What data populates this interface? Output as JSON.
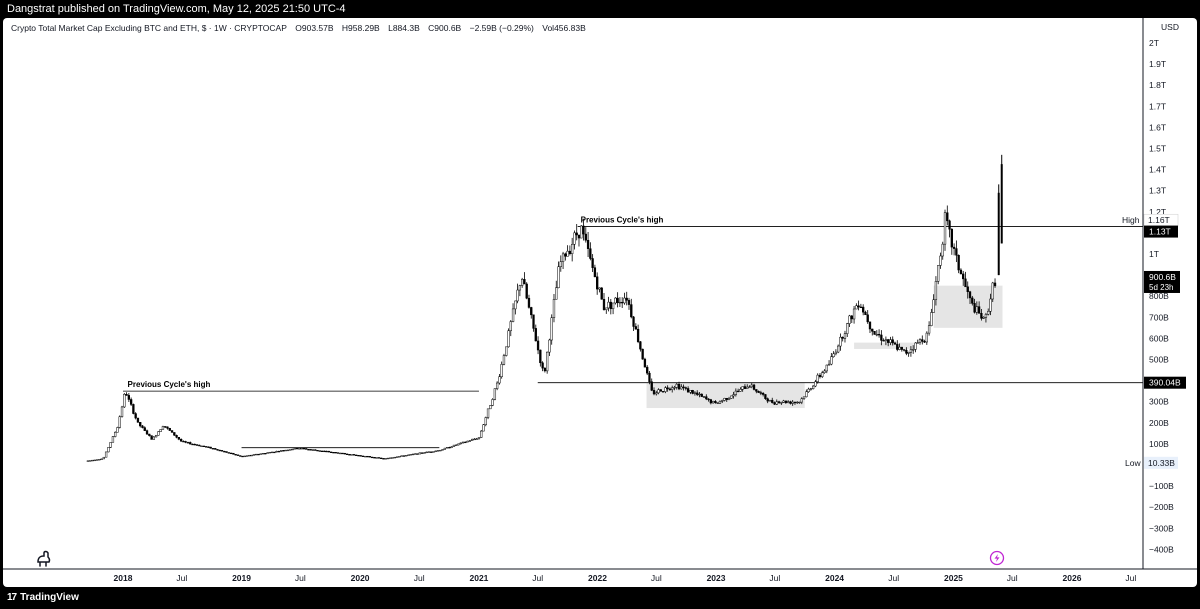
{
  "header": {
    "publisher_line": "Dangstrat published on TradingView.com, May 12, 2025 21:50 UTC-4"
  },
  "legend": {
    "symbol": "Crypto Total Market Cap Excluding BTC and ETH, $ · 1W · CRYPTOCAP",
    "open": "O903.57B",
    "high": "H958.29B",
    "low": "L884.3B",
    "close": "C900.6B",
    "change": "−2.59B (−0.29%)",
    "volume": "Vol456.83B"
  },
  "price_axis": {
    "currency": "USD",
    "tick_labels": [
      "2T",
      "1.9T",
      "1.8T",
      "1.7T",
      "1.6T",
      "1.5T",
      "1.4T",
      "1.3T",
      "1.2T",
      "1.1T",
      "1T",
      "800B",
      "700B",
      "600B",
      "500B",
      "300B",
      "200B",
      "100B",
      "−100B",
      "−200B",
      "−300B",
      "−400B"
    ],
    "high_label": "High",
    "high_value": "1.16T",
    "level_1_13": "1.13T",
    "current_price": "900.6B",
    "countdown": "5d 23h",
    "level_390": "390.04B",
    "low_label": "Low",
    "low_value": "10.33B"
  },
  "time_axis": {
    "labels": [
      "2018",
      "Jul",
      "2019",
      "Jul",
      "2020",
      "Jul",
      "2021",
      "Jul",
      "2022",
      "Jul",
      "2023",
      "Jul",
      "2024",
      "Jul",
      "2025",
      "Jul",
      "2026",
      "Jul"
    ]
  },
  "annotations": {
    "prev_high_2018": "Previous Cycle's high",
    "prev_high_2021": "Previous Cycle's high"
  },
  "footer": {
    "brand": "TradingView"
  },
  "colors": {
    "candle": "#000000",
    "zone": "#e0e0e0",
    "accent_icon": "#c026d3"
  },
  "chart_data": {
    "type": "candlestick",
    "title": "Crypto Total Market Cap Excluding BTC and ETH",
    "ylabel": "USD",
    "ylim": [
      -400000000000,
      2000000000000
    ],
    "xlim": [
      "2017-09",
      "2026-10"
    ],
    "series": [
      {
        "name": "Crypto Total Market Cap Excluding BTC and ETH",
        "approx_close_path": [
          [
            "2017-09-15",
            20000000000.0
          ],
          [
            "2017-11-01",
            30000000000.0
          ],
          [
            "2017-12-15",
            180000000000.0
          ],
          [
            "2018-01-08",
            350000000000.0
          ],
          [
            "2018-02-15",
            200000000000.0
          ],
          [
            "2018-04-01",
            120000000000.0
          ],
          [
            "2018-05-05",
            190000000000.0
          ],
          [
            "2018-07-01",
            110000000000.0
          ],
          [
            "2018-10-01",
            80000000000.0
          ],
          [
            "2019-01-01",
            40000000000.0
          ],
          [
            "2019-06-25",
            80000000000.0
          ],
          [
            "2020-03-15",
            30000000000.0
          ],
          [
            "2020-09-01",
            70000000000.0
          ],
          [
            "2021-01-01",
            130000000000.0
          ],
          [
            "2021-03-01",
            400000000000.0
          ],
          [
            "2021-05-12",
            900000000000.0
          ],
          [
            "2021-07-20",
            420000000000.0
          ],
          [
            "2021-09-06",
            950000000000.0
          ],
          [
            "2021-11-10",
            1130000000000.0
          ],
          [
            "2022-01-20",
            750000000000.0
          ],
          [
            "2022-04-01",
            800000000000.0
          ],
          [
            "2022-06-18",
            340000000000.0
          ],
          [
            "2022-09-01",
            380000000000.0
          ],
          [
            "2022-12-31",
            290000000000.0
          ],
          [
            "2023-04-15",
            380000000000.0
          ],
          [
            "2023-06-15",
            300000000000.0
          ],
          [
            "2023-09-15",
            300000000000.0
          ],
          [
            "2023-12-15",
            480000000000.0
          ],
          [
            "2024-03-15",
            780000000000.0
          ],
          [
            "2024-05-01",
            630000000000.0
          ],
          [
            "2024-08-05",
            530000000000.0
          ],
          [
            "2024-10-15",
            620000000000.0
          ],
          [
            "2024-12-06",
            1160000000000.0
          ],
          [
            "2025-01-15",
            950000000000.0
          ],
          [
            "2025-02-25",
            760000000000.0
          ],
          [
            "2025-04-07",
            680000000000.0
          ],
          [
            "2025-05-12",
            900000000000.0
          ]
        ]
      }
    ],
    "ohlc_latest": {
      "open": 903.57,
      "high": 958.29,
      "low": 884.3,
      "close": 900.6,
      "unit": "B"
    },
    "horizontal_levels": [
      {
        "value": 1130000000000.0,
        "label": "1.13T",
        "annotation": "Previous Cycle's high",
        "from": "2021-11"
      },
      {
        "value": 350000000000.0,
        "annotation": "Previous Cycle's high",
        "from": "2018-01",
        "to": "2021-01"
      },
      {
        "value": 390040000000.0,
        "label": "390.04B",
        "from": "2021-07"
      },
      {
        "value": 82000000000.0,
        "from": "2019-01",
        "to": "2020-09"
      }
    ],
    "zones": [
      {
        "from": "2022-06",
        "to": "2023-10",
        "y_low": 270000000000.0,
        "y_high": 390000000000.0
      },
      {
        "from": "2024-03",
        "to": "2024-09",
        "y_low": 550000000000.0,
        "y_high": 580000000000.0
      },
      {
        "from": "2024-11",
        "to": "2025-06",
        "y_low": 650000000000.0,
        "y_high": 850000000000.0
      }
    ],
    "grid": false
  }
}
